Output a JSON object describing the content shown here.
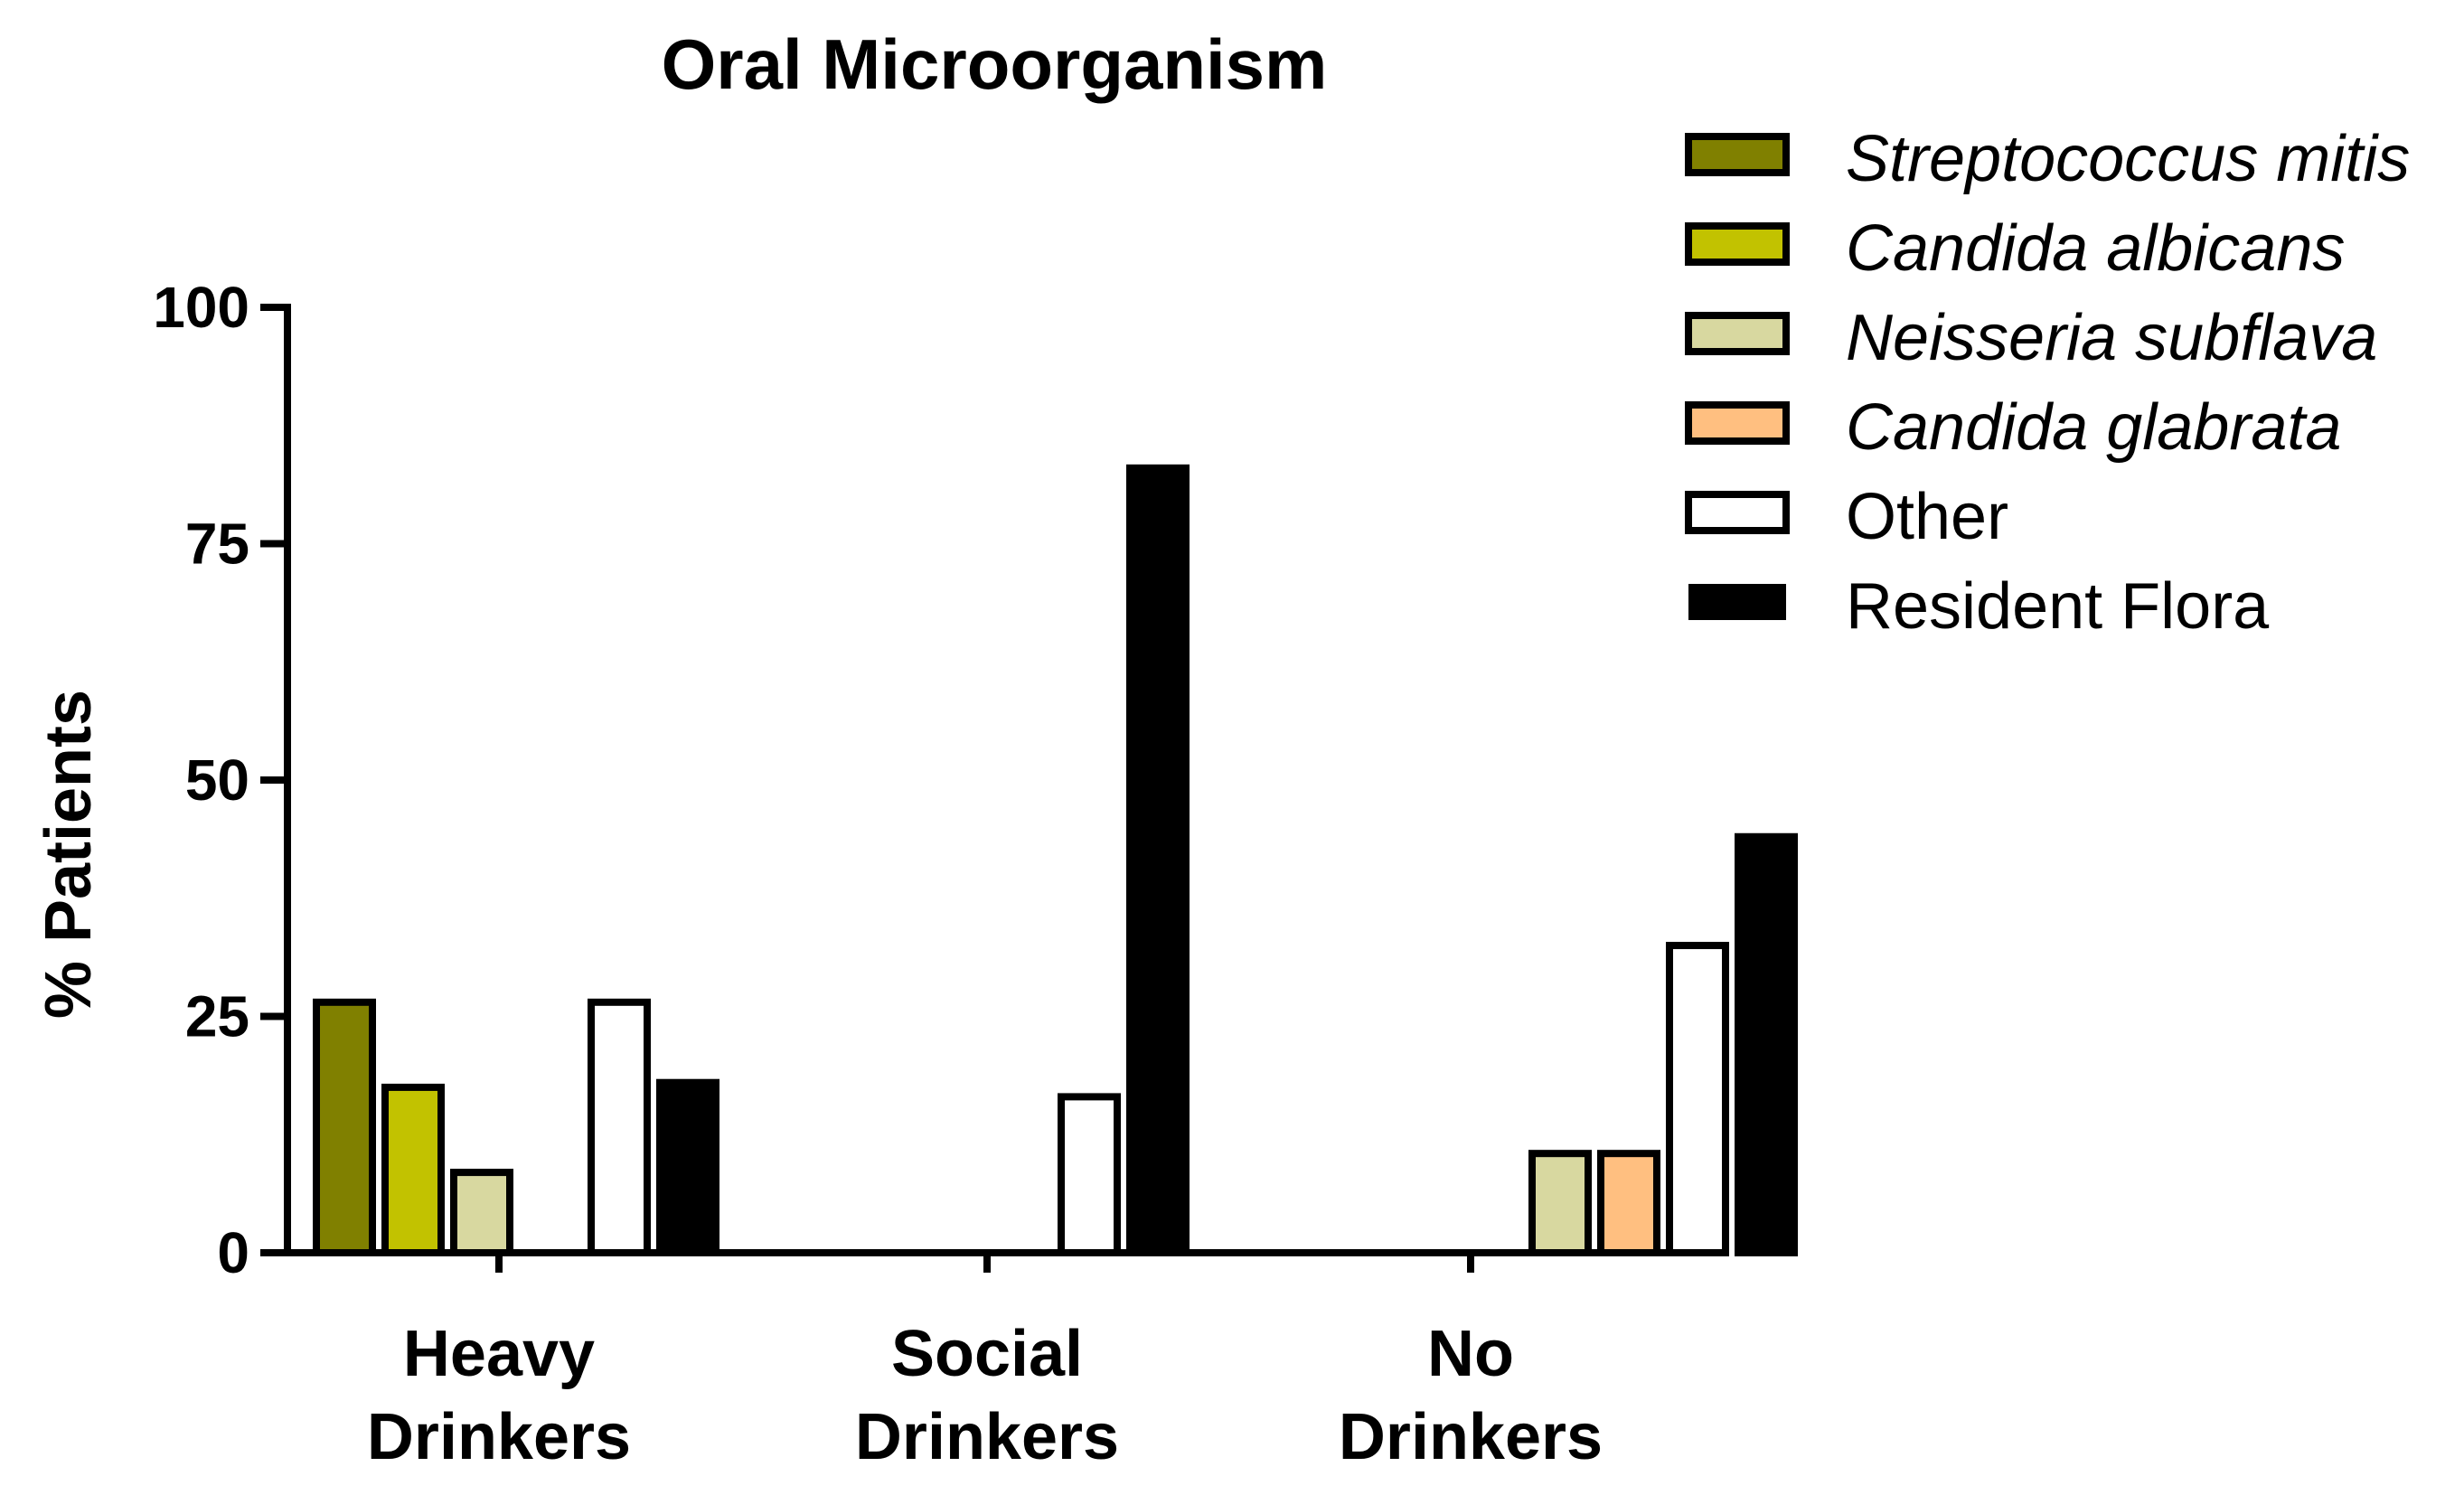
{
  "chart_data": {
    "type": "bar",
    "title": "Oral Microorganism",
    "xlabel": "",
    "ylabel": "% Patients",
    "ylim": [
      0,
      100
    ],
    "yticks": [
      0,
      25,
      50,
      75,
      100
    ],
    "ytick_labels": [
      "0",
      "25",
      "50",
      "75",
      "100"
    ],
    "categories": [
      {
        "lines": [
          "Heavy",
          "Drinkers"
        ]
      },
      {
        "lines": [
          "Social",
          "Drinkers"
        ]
      },
      {
        "lines": [
          "No",
          "Drinkers"
        ]
      }
    ],
    "series": [
      {
        "name": "Streptococcus mitis",
        "italic": true,
        "color": "#808000",
        "values": [
          26.5,
          0,
          0
        ]
      },
      {
        "name": "Candida albicans",
        "italic": true,
        "color": "#c2c200",
        "values": [
          17.5,
          0,
          0
        ]
      },
      {
        "name": "Neisseria subflava",
        "italic": true,
        "color": "#d8d8a0",
        "values": [
          8.5,
          0,
          10.5
        ]
      },
      {
        "name": "Candida glabrata",
        "italic": true,
        "color": "#ffbf80",
        "values": [
          0,
          0,
          10.5
        ]
      },
      {
        "name": "Other",
        "italic": false,
        "color": "#ffffff",
        "values": [
          26.5,
          16.5,
          32.5
        ]
      },
      {
        "name": "Resident Flora",
        "italic": false,
        "color": "#000000",
        "values": [
          18,
          83,
          44
        ]
      }
    ],
    "legend_position": "top-right",
    "grid": false
  }
}
